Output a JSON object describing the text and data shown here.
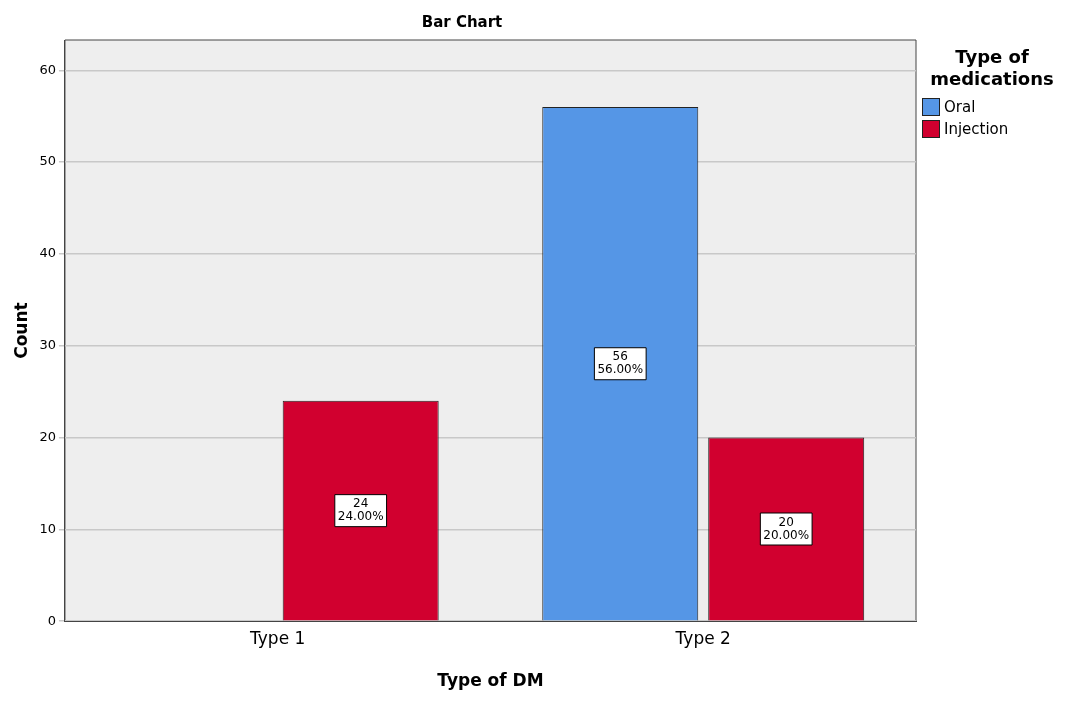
{
  "chart_data": {
    "type": "bar",
    "title": "Bar Chart",
    "xlabel": "Type of DM",
    "ylabel": "Count",
    "legend_title": "Type of medications",
    "categories": [
      "Type 1",
      "Type 2"
    ],
    "series": [
      {
        "name": "Oral",
        "color": "#5596e6",
        "values": [
          null,
          56
        ],
        "value_labels": [
          null,
          "56\n56.00%"
        ]
      },
      {
        "name": "Injection",
        "color": "#d1002f",
        "values": [
          24,
          20
        ],
        "value_labels": [
          "24\n24.00%",
          "20\n20.00%"
        ]
      }
    ],
    "ylim": [
      0,
      63.3
    ],
    "yticks": [
      0,
      10,
      20,
      30,
      40,
      50,
      60
    ],
    "grid": "y",
    "legend": "top right"
  }
}
